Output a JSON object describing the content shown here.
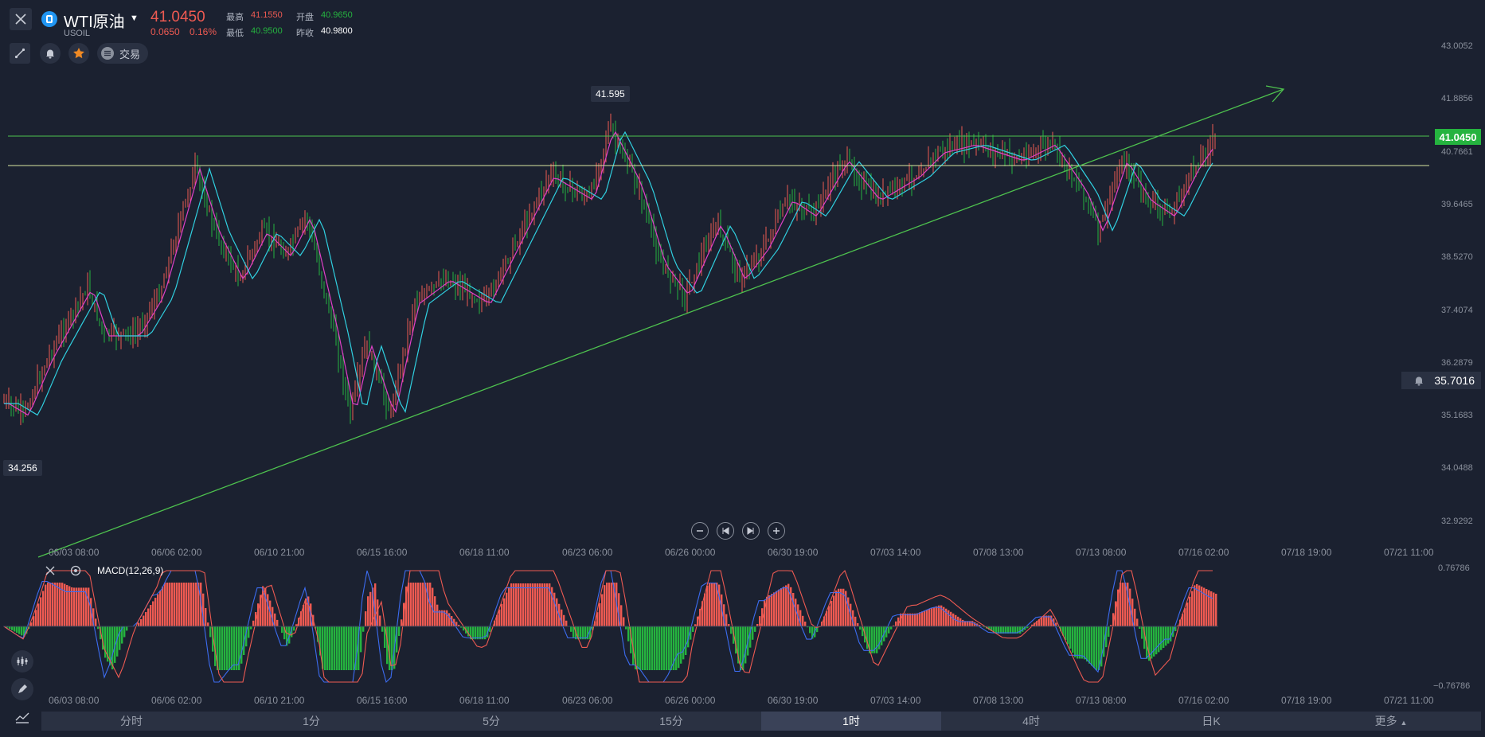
{
  "header": {
    "symbol_name": "WTI原油",
    "symbol_code": "USOIL",
    "last_price": "41.0450",
    "change": "0.0650",
    "change_pct": "0.16%",
    "stats": {
      "high_label": "最高",
      "high": "41.1550",
      "open_label": "开盘",
      "open": "40.9650",
      "low_label": "最低",
      "low": "40.9500",
      "prev_close_label": "昨收",
      "prev_close": "40.9800"
    },
    "trade_label": "交易"
  },
  "chart": {
    "price_axis": [
      "43.0052",
      "41.8856",
      "40.7661",
      "39.6465",
      "38.5270",
      "37.4074",
      "36.2879",
      "35.1683",
      "34.0488",
      "32.9292"
    ],
    "time_axis": [
      "06/03 08:00",
      "06/06 02:00",
      "06/10 21:00",
      "06/15 16:00",
      "06/18 11:00",
      "06/23 06:00",
      "06/26 00:00",
      "06/30 19:00",
      "07/03 14:00",
      "07/08 13:00",
      "07/13 08:00",
      "07/16 02:00",
      "07/18 19:00",
      "07/21 11:00"
    ],
    "high_marker": "41.595",
    "low_marker": "34.256",
    "current_price": "41.0450",
    "alert_price": "35.7016"
  },
  "indicator": {
    "name": "MACD(12,26,9)",
    "axis_top": "0.76786",
    "axis_bottom": "−0.76786"
  },
  "timeframes": {
    "tabs": [
      "分时",
      "1分",
      "5分",
      "15分",
      "1时",
      "4时",
      "日K",
      "更多"
    ],
    "active_index": 4
  },
  "colors": {
    "up": "#ee5a52",
    "down": "#25b33f",
    "background": "#1b2130",
    "ma_pink": "#e040c8",
    "ma_cyan": "#30d0e0"
  }
}
